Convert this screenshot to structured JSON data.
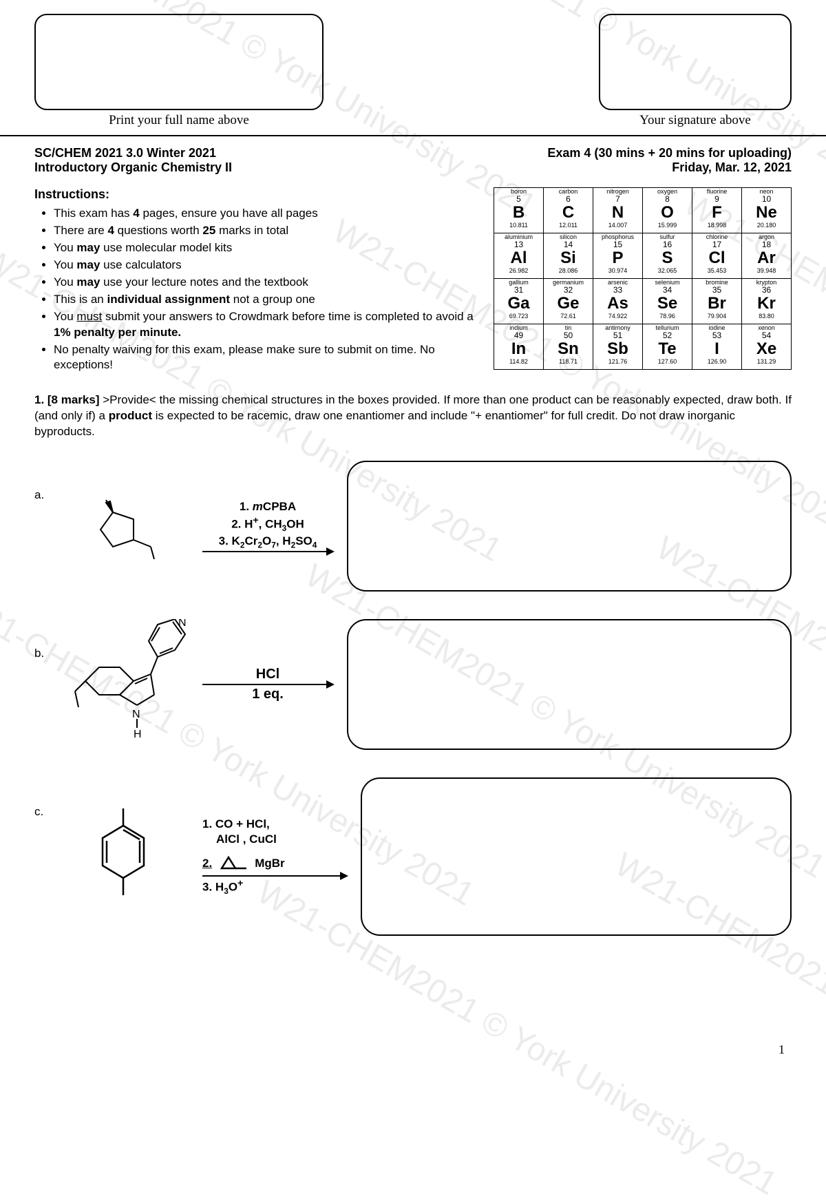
{
  "watermark": "W21-CHEM2021 © York University 2021",
  "header": {
    "name_label": "Print your full name above",
    "sig_label": "Your signature above"
  },
  "course": {
    "code": "SC/CHEM 2021 3.0 Winter 2021",
    "title": "Introductory Organic Chemistry II",
    "exam": "Exam 4 (30 mins + 20 mins for uploading)",
    "date": "Friday, Mar. 12, 2021"
  },
  "instructions": {
    "heading": "Instructions:",
    "items": [
      {
        "pre": "This exam has ",
        "b": "4",
        "post": " pages, ensure you have all pages"
      },
      {
        "pre": "There are ",
        "b": "4",
        "post": " questions worth ",
        "b2": "25",
        "post2": " marks in total"
      },
      {
        "pre": "You ",
        "b": "may",
        "post": " use molecular model kits"
      },
      {
        "pre": "You ",
        "b": "may",
        "post": " use calculators"
      },
      {
        "pre": "You ",
        "b": "may",
        "post": " use your lecture notes and the textbook"
      },
      {
        "pre": "This is an ",
        "b": "individual assignment",
        "post": " not a group one"
      },
      {
        "pre": "You ",
        "u": "must",
        "post": " submit your answers to Crowdmark before time is completed to avoid a ",
        "b": "1% penalty per minute."
      },
      {
        "pre": "No penalty waiving for this exam, please make sure to submit on time. No exceptions!"
      }
    ]
  },
  "ptable": [
    [
      {
        "n": "boron",
        "z": "5",
        "s": "B",
        "m": "10.811"
      },
      {
        "n": "carbon",
        "z": "6",
        "s": "C",
        "m": "12.011"
      },
      {
        "n": "nitrogen",
        "z": "7",
        "s": "N",
        "m": "14.007"
      },
      {
        "n": "oxygen",
        "z": "8",
        "s": "O",
        "m": "15.999"
      },
      {
        "n": "fluorine",
        "z": "9",
        "s": "F",
        "m": "18.998"
      },
      {
        "n": "neon",
        "z": "10",
        "s": "Ne",
        "m": "20.180"
      }
    ],
    [
      {
        "n": "aluminium",
        "z": "13",
        "s": "Al",
        "m": "26.982"
      },
      {
        "n": "silicon",
        "z": "14",
        "s": "Si",
        "m": "28.086"
      },
      {
        "n": "phosphorus",
        "z": "15",
        "s": "P",
        "m": "30.974"
      },
      {
        "n": "sulfur",
        "z": "16",
        "s": "S",
        "m": "32.065"
      },
      {
        "n": "chlorine",
        "z": "17",
        "s": "Cl",
        "m": "35.453"
      },
      {
        "n": "argon",
        "z": "18",
        "s": "Ar",
        "m": "39.948"
      }
    ],
    [
      {
        "n": "gallium",
        "z": "31",
        "s": "Ga",
        "m": "69.723"
      },
      {
        "n": "germanium",
        "z": "32",
        "s": "Ge",
        "m": "72.61"
      },
      {
        "n": "arsenic",
        "z": "33",
        "s": "As",
        "m": "74.922"
      },
      {
        "n": "selenium",
        "z": "34",
        "s": "Se",
        "m": "78.96"
      },
      {
        "n": "bromine",
        "z": "35",
        "s": "Br",
        "m": "79.904"
      },
      {
        "n": "krypton",
        "z": "36",
        "s": "Kr",
        "m": "83.80"
      }
    ],
    [
      {
        "n": "indium",
        "z": "49",
        "s": "In",
        "m": "114.82"
      },
      {
        "n": "tin",
        "z": "50",
        "s": "Sn",
        "m": "118.71"
      },
      {
        "n": "antimony",
        "z": "51",
        "s": "Sb",
        "m": "121.76"
      },
      {
        "n": "tellurium",
        "z": "52",
        "s": "Te",
        "m": "127.60"
      },
      {
        "n": "iodine",
        "z": "53",
        "s": "I",
        "m": "126.90"
      },
      {
        "n": "xenon",
        "z": "54",
        "s": "Xe",
        "m": "131.29"
      }
    ]
  ],
  "q1": {
    "num": "1. [8 marks]",
    "text": " >Provide< the missing chemical structures in the boxes provided. If more than one product can be reasonably expected, draw both. If (and only if) a ",
    "b": "product",
    "text2": " is expected to be racemic, draw one enantiomer and include \"+ enantiomer\" for full credit. Do not draw inorganic byproducts."
  },
  "rxn": {
    "a": {
      "label": "a.",
      "r1": "1. mCPBA",
      "r2": "2. H⁺, CH₃OH",
      "r3": "3. K₂Cr₂O₇, H₂SO₄"
    },
    "b": {
      "label": "b.",
      "r1": "HCl",
      "r2": "1 eq."
    },
    "c": {
      "label": "c.",
      "r1": "1. CO + HCl,",
      "r1b": "    AlCl , CuCl",
      "r2": "2.          MgBr",
      "r3": "3. H₃O⁺"
    }
  },
  "page_num": "1"
}
